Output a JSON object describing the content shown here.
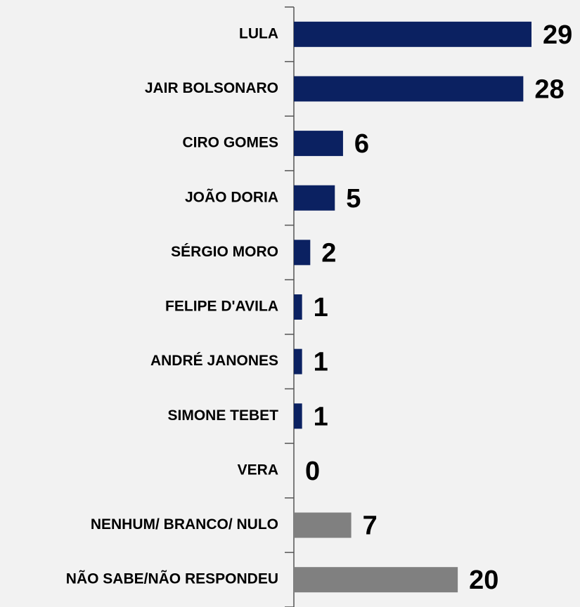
{
  "chart_data": {
    "type": "bar",
    "orientation": "horizontal",
    "categories": [
      "LULA",
      "JAIR BOLSONARO",
      "CIRO GOMES",
      "JOÃO DORIA",
      "SÉRGIO MORO",
      "FELIPE D'AVILA",
      "ANDRÉ JANONES",
      "SIMONE TEBET",
      "VERA",
      "NENHUM/ BRANCO/ NULO",
      "NÃO SABE/NÃO RESPONDEU"
    ],
    "values": [
      29,
      28,
      6,
      5,
      2,
      1,
      1,
      1,
      0,
      7,
      20
    ],
    "colors": [
      "#0b2161",
      "#0b2161",
      "#0b2161",
      "#0b2161",
      "#0b2161",
      "#0b2161",
      "#0b2161",
      "#0b2161",
      "#0b2161",
      "#808080",
      "#808080"
    ]
  }
}
